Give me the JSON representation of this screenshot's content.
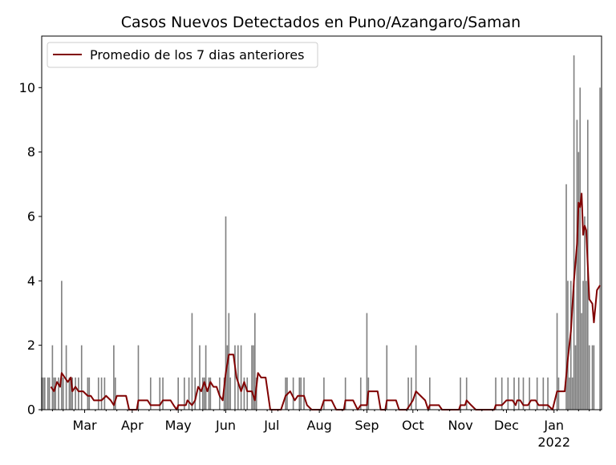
{
  "chart_data": {
    "type": "bar",
    "title": "Casos Nuevos Detectados en Puno/Azangaro/Saman",
    "xlabel": "",
    "ylabel": "",
    "x_start": "2021-02-01",
    "x_end": "2022-02-01",
    "xlim": [
      "2021-02-01",
      "2022-02-01"
    ],
    "ylim": [
      0,
      11.6
    ],
    "y_ticks": [
      0,
      2,
      4,
      6,
      8,
      10
    ],
    "x_ticks": [
      {
        "date": "2021-03-01",
        "label": "Mar"
      },
      {
        "date": "2021-04-01",
        "label": "Apr"
      },
      {
        "date": "2021-05-01",
        "label": "May"
      },
      {
        "date": "2021-06-01",
        "label": "Jun"
      },
      {
        "date": "2021-07-01",
        "label": "Jul"
      },
      {
        "date": "2021-08-01",
        "label": "Aug"
      },
      {
        "date": "2021-09-01",
        "label": "Sep"
      },
      {
        "date": "2021-10-01",
        "label": "Oct"
      },
      {
        "date": "2021-11-01",
        "label": "Nov"
      },
      {
        "date": "2021-12-01",
        "label": "Dec"
      },
      {
        "date": "2022-01-01",
        "label": "Jan",
        "sublabel": "2022"
      }
    ],
    "bar_color": "#808080",
    "line_color": "#800000",
    "legend": {
      "position": "top-left",
      "label": "Promedio de los 7 dias anteriores"
    },
    "series": [
      {
        "kind": "bar",
        "points": [
          [
            "2021-02-01",
            1
          ],
          [
            "2021-02-02",
            1
          ],
          [
            "2021-02-03",
            1
          ],
          [
            "2021-02-05",
            1
          ],
          [
            "2021-02-06",
            1
          ],
          [
            "2021-02-08",
            2
          ],
          [
            "2021-02-09",
            1
          ],
          [
            "2021-02-10",
            1
          ],
          [
            "2021-02-12",
            1
          ],
          [
            "2021-02-14",
            4
          ],
          [
            "2021-02-15",
            1
          ],
          [
            "2021-02-17",
            2
          ],
          [
            "2021-02-19",
            1
          ],
          [
            "2021-02-20",
            1
          ],
          [
            "2021-02-21",
            1
          ],
          [
            "2021-02-23",
            1
          ],
          [
            "2021-02-25",
            1
          ],
          [
            "2021-02-27",
            2
          ],
          [
            "2021-03-03",
            1
          ],
          [
            "2021-03-04",
            1
          ],
          [
            "2021-03-10",
            1
          ],
          [
            "2021-03-12",
            1
          ],
          [
            "2021-03-14",
            1
          ],
          [
            "2021-03-20",
            2
          ],
          [
            "2021-03-21",
            1
          ],
          [
            "2021-04-05",
            2
          ],
          [
            "2021-04-13",
            1
          ],
          [
            "2021-04-19",
            1
          ],
          [
            "2021-04-21",
            1
          ],
          [
            "2021-05-01",
            1
          ],
          [
            "2021-05-05",
            1
          ],
          [
            "2021-05-08",
            1
          ],
          [
            "2021-05-10",
            3
          ],
          [
            "2021-05-12",
            1
          ],
          [
            "2021-05-15",
            2
          ],
          [
            "2021-05-17",
            1
          ],
          [
            "2021-05-18",
            1
          ],
          [
            "2021-05-19",
            2
          ],
          [
            "2021-05-21",
            1
          ],
          [
            "2021-05-22",
            1
          ],
          [
            "2021-05-28",
            1
          ],
          [
            "2021-05-31",
            1
          ],
          [
            "2021-06-01",
            6
          ],
          [
            "2021-06-02",
            2
          ],
          [
            "2021-06-03",
            3
          ],
          [
            "2021-06-04",
            1
          ],
          [
            "2021-06-07",
            2
          ],
          [
            "2021-06-09",
            2
          ],
          [
            "2021-06-11",
            2
          ],
          [
            "2021-06-13",
            1
          ],
          [
            "2021-06-15",
            1
          ],
          [
            "2021-06-18",
            2
          ],
          [
            "2021-06-19",
            2
          ],
          [
            "2021-06-20",
            3
          ],
          [
            "2021-06-21",
            1
          ],
          [
            "2021-07-10",
            1
          ],
          [
            "2021-07-11",
            1
          ],
          [
            "2021-07-15",
            1
          ],
          [
            "2021-07-19",
            1
          ],
          [
            "2021-07-20",
            1
          ],
          [
            "2021-07-22",
            1
          ],
          [
            "2021-08-04",
            1
          ],
          [
            "2021-08-18",
            1
          ],
          [
            "2021-08-28",
            1
          ],
          [
            "2021-09-01",
            3
          ],
          [
            "2021-09-02",
            1
          ],
          [
            "2021-09-14",
            2
          ],
          [
            "2021-09-28",
            1
          ],
          [
            "2021-09-30",
            1
          ],
          [
            "2021-10-03",
            2
          ],
          [
            "2021-10-12",
            1
          ],
          [
            "2021-11-01",
            1
          ],
          [
            "2021-11-05",
            1
          ],
          [
            "2021-11-24",
            1
          ],
          [
            "2021-11-28",
            1
          ],
          [
            "2021-12-02",
            1
          ],
          [
            "2021-12-06",
            1
          ],
          [
            "2021-12-09",
            1
          ],
          [
            "2021-12-12",
            1
          ],
          [
            "2021-12-16",
            1
          ],
          [
            "2021-12-21",
            1
          ],
          [
            "2021-12-25",
            1
          ],
          [
            "2021-12-28",
            1
          ],
          [
            "2022-01-03",
            3
          ],
          [
            "2022-01-04",
            1
          ],
          [
            "2022-01-09",
            7
          ],
          [
            "2022-01-10",
            4
          ],
          [
            "2022-01-11",
            1
          ],
          [
            "2022-01-12",
            4
          ],
          [
            "2022-01-13",
            1
          ],
          [
            "2022-01-14",
            11
          ],
          [
            "2022-01-15",
            2
          ],
          [
            "2022-01-16",
            9
          ],
          [
            "2022-01-17",
            8
          ],
          [
            "2022-01-18",
            10
          ],
          [
            "2022-01-19",
            3
          ],
          [
            "2022-01-20",
            4
          ],
          [
            "2022-01-21",
            6
          ],
          [
            "2022-01-22",
            4
          ],
          [
            "2022-01-23",
            9
          ],
          [
            "2022-01-24",
            2
          ],
          [
            "2022-01-26",
            2
          ],
          [
            "2022-01-27",
            2
          ],
          [
            "2022-01-31",
            10
          ]
        ]
      },
      {
        "kind": "line",
        "name": "Promedio de los 7 dias anteriores",
        "points": [
          [
            "2021-02-07",
            0.71
          ],
          [
            "2021-02-09",
            0.57
          ],
          [
            "2021-02-11",
            0.86
          ],
          [
            "2021-02-13",
            0.71
          ],
          [
            "2021-02-14",
            1.14
          ],
          [
            "2021-02-16",
            1.0
          ],
          [
            "2021-02-18",
            0.86
          ],
          [
            "2021-02-20",
            1.0
          ],
          [
            "2021-02-21",
            0.57
          ],
          [
            "2021-02-23",
            0.71
          ],
          [
            "2021-02-25",
            0.57
          ],
          [
            "2021-02-28",
            0.57
          ],
          [
            "2021-03-03",
            0.43
          ],
          [
            "2021-03-05",
            0.43
          ],
          [
            "2021-03-07",
            0.29
          ],
          [
            "2021-03-12",
            0.29
          ],
          [
            "2021-03-15",
            0.43
          ],
          [
            "2021-03-18",
            0.29
          ],
          [
            "2021-03-20",
            0.14
          ],
          [
            "2021-03-22",
            0.43
          ],
          [
            "2021-03-28",
            0.43
          ],
          [
            "2021-03-30",
            0.0
          ],
          [
            "2021-04-04",
            0.0
          ],
          [
            "2021-04-05",
            0.29
          ],
          [
            "2021-04-11",
            0.29
          ],
          [
            "2021-04-13",
            0.14
          ],
          [
            "2021-04-19",
            0.14
          ],
          [
            "2021-04-21",
            0.29
          ],
          [
            "2021-04-26",
            0.29
          ],
          [
            "2021-04-28",
            0.14
          ],
          [
            "2021-04-30",
            0.0
          ],
          [
            "2021-05-01",
            0.14
          ],
          [
            "2021-05-06",
            0.14
          ],
          [
            "2021-05-07",
            0.29
          ],
          [
            "2021-05-10",
            0.14
          ],
          [
            "2021-05-12",
            0.29
          ],
          [
            "2021-05-14",
            0.71
          ],
          [
            "2021-05-16",
            0.57
          ],
          [
            "2021-05-18",
            0.86
          ],
          [
            "2021-05-20",
            0.57
          ],
          [
            "2021-05-22",
            0.86
          ],
          [
            "2021-05-24",
            0.71
          ],
          [
            "2021-05-26",
            0.71
          ],
          [
            "2021-05-28",
            0.43
          ],
          [
            "2021-05-30",
            0.29
          ],
          [
            "2021-06-01",
            1.14
          ],
          [
            "2021-06-03",
            1.71
          ],
          [
            "2021-06-06",
            1.71
          ],
          [
            "2021-06-08",
            1.0
          ],
          [
            "2021-06-11",
            0.57
          ],
          [
            "2021-06-13",
            0.86
          ],
          [
            "2021-06-15",
            0.57
          ],
          [
            "2021-06-18",
            0.57
          ],
          [
            "2021-06-20",
            0.29
          ],
          [
            "2021-06-22",
            1.14
          ],
          [
            "2021-06-24",
            1.0
          ],
          [
            "2021-06-27",
            1.0
          ],
          [
            "2021-06-30",
            0.0
          ],
          [
            "2021-07-07",
            0.0
          ],
          [
            "2021-07-10",
            0.43
          ],
          [
            "2021-07-13",
            0.57
          ],
          [
            "2021-07-16",
            0.29
          ],
          [
            "2021-07-18",
            0.43
          ],
          [
            "2021-07-22",
            0.43
          ],
          [
            "2021-07-24",
            0.14
          ],
          [
            "2021-07-27",
            0.0
          ],
          [
            "2021-08-02",
            0.0
          ],
          [
            "2021-08-04",
            0.29
          ],
          [
            "2021-08-09",
            0.29
          ],
          [
            "2021-08-12",
            0.0
          ],
          [
            "2021-08-17",
            0.0
          ],
          [
            "2021-08-18",
            0.29
          ],
          [
            "2021-08-23",
            0.29
          ],
          [
            "2021-08-26",
            0.0
          ],
          [
            "2021-08-28",
            0.14
          ],
          [
            "2021-09-01",
            0.14
          ],
          [
            "2021-09-02",
            0.57
          ],
          [
            "2021-09-08",
            0.57
          ],
          [
            "2021-09-10",
            0.0
          ],
          [
            "2021-09-13",
            0.0
          ],
          [
            "2021-09-14",
            0.29
          ],
          [
            "2021-09-20",
            0.29
          ],
          [
            "2021-09-22",
            0.0
          ],
          [
            "2021-09-27",
            0.0
          ],
          [
            "2021-09-29",
            0.14
          ],
          [
            "2021-10-01",
            0.29
          ],
          [
            "2021-10-03",
            0.57
          ],
          [
            "2021-10-06",
            0.43
          ],
          [
            "2021-10-09",
            0.29
          ],
          [
            "2021-10-11",
            0.0
          ],
          [
            "2021-10-12",
            0.14
          ],
          [
            "2021-10-18",
            0.14
          ],
          [
            "2021-10-20",
            0.0
          ],
          [
            "2021-10-31",
            0.0
          ],
          [
            "2021-11-01",
            0.14
          ],
          [
            "2021-11-04",
            0.14
          ],
          [
            "2021-11-05",
            0.29
          ],
          [
            "2021-11-08",
            0.14
          ],
          [
            "2021-11-11",
            0.0
          ],
          [
            "2021-11-23",
            0.0
          ],
          [
            "2021-11-24",
            0.14
          ],
          [
            "2021-11-28",
            0.14
          ],
          [
            "2021-12-01",
            0.29
          ],
          [
            "2021-12-05",
            0.29
          ],
          [
            "2021-12-07",
            0.14
          ],
          [
            "2021-12-08",
            0.29
          ],
          [
            "2021-12-10",
            0.29
          ],
          [
            "2021-12-12",
            0.14
          ],
          [
            "2021-12-15",
            0.14
          ],
          [
            "2021-12-17",
            0.29
          ],
          [
            "2021-12-20",
            0.29
          ],
          [
            "2021-12-22",
            0.14
          ],
          [
            "2021-12-28",
            0.14
          ],
          [
            "2021-12-31",
            0.0
          ],
          [
            "2022-01-03",
            0.57
          ],
          [
            "2022-01-08",
            0.57
          ],
          [
            "2022-01-10",
            1.57
          ],
          [
            "2022-01-12",
            2.43
          ],
          [
            "2022-01-14",
            4.0
          ],
          [
            "2022-01-16",
            5.14
          ],
          [
            "2022-01-17",
            6.43
          ],
          [
            "2022-01-18",
            6.29
          ],
          [
            "2022-01-19",
            6.71
          ],
          [
            "2022-01-20",
            5.43
          ],
          [
            "2022-01-21",
            5.71
          ],
          [
            "2022-01-22",
            5.57
          ],
          [
            "2022-01-24",
            3.43
          ],
          [
            "2022-01-26",
            3.29
          ],
          [
            "2022-01-27",
            2.71
          ],
          [
            "2022-01-29",
            3.71
          ],
          [
            "2022-01-31",
            3.86
          ]
        ]
      }
    ]
  }
}
